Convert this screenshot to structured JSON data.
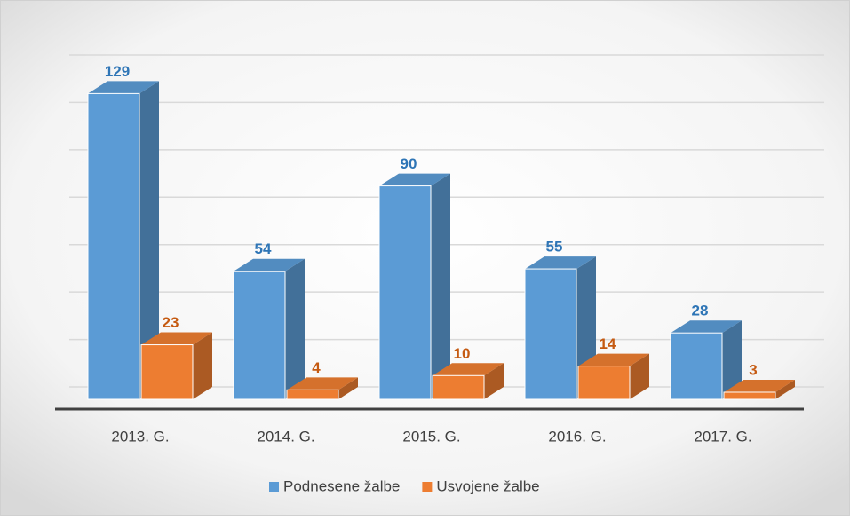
{
  "chart_data": {
    "type": "bar3d",
    "categories": [
      "2013. G.",
      "2014. G.",
      "2015. G.",
      "2016. G.",
      "2017. G."
    ],
    "series": [
      {
        "name": "Podnesene žalbe",
        "color": "#5b9bd5",
        "values": [
          129,
          54,
          90,
          55,
          28
        ]
      },
      {
        "name": "Usvojene žalbe",
        "color": "#ed7d31",
        "values": [
          23,
          4,
          10,
          14,
          3
        ]
      }
    ],
    "ylim": [
      0,
      140
    ],
    "yticks": [
      0,
      20,
      40,
      60,
      80,
      100,
      120,
      140
    ],
    "grid": true,
    "legend": "bottom"
  }
}
